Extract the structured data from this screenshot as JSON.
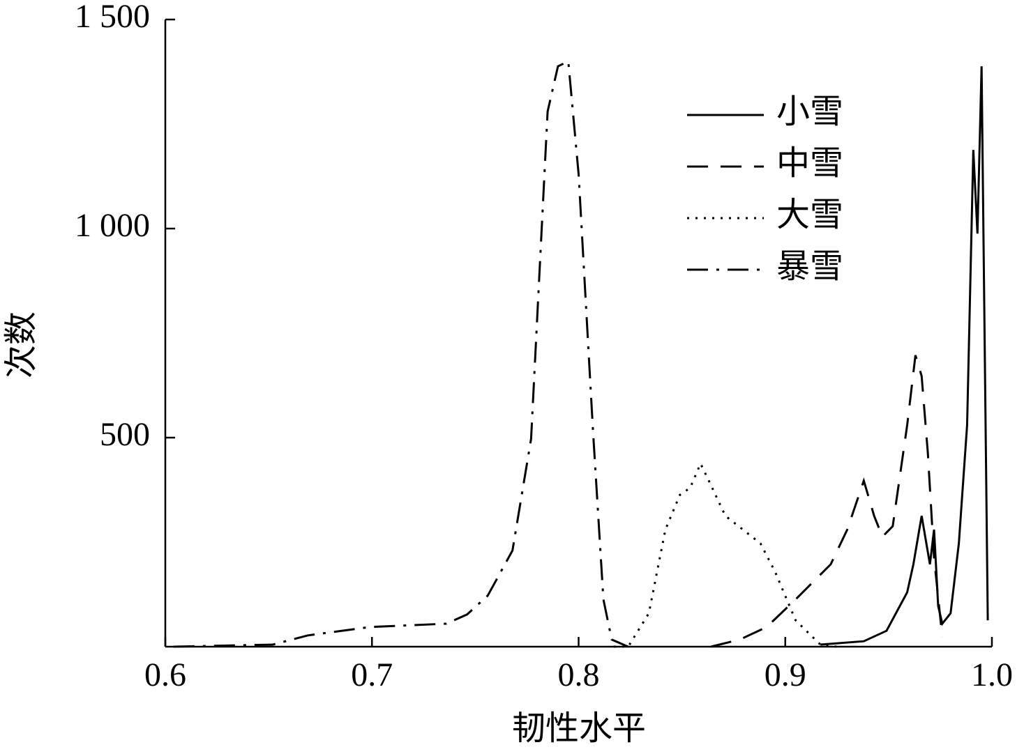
{
  "chart_data": {
    "type": "line",
    "xlabel": "韧性水平",
    "ylabel": "次数",
    "xlim": [
      0.6,
      1.0
    ],
    "ylim": [
      0,
      1500
    ],
    "xticks": [
      0.6,
      0.7,
      0.8,
      0.9,
      {
        "value": 1,
        "label": "1.0"
      }
    ],
    "yticks": [
      500,
      {
        "value": 1000,
        "label": "1 000"
      },
      {
        "value": 1500,
        "label": "1 500"
      }
    ],
    "legend": "upper right",
    "series": [
      {
        "name": "小雪",
        "color": "#000000",
        "dash": "solid",
        "x": [
          0.917,
          0.938,
          0.949,
          0.959,
          0.962,
          0.966,
          0.97,
          0.972,
          0.974,
          0.976,
          0.98,
          0.984,
          0.988,
          0.991,
          0.993,
          0.995,
          0.998
        ],
        "values": [
          5,
          13,
          38,
          130,
          197,
          313,
          197,
          280,
          97,
          55,
          80,
          247,
          530,
          1188,
          988,
          1388,
          63
        ]
      },
      {
        "name": "中雪",
        "color": "#000000",
        "dash": "dashed",
        "x": [
          0.864,
          0.878,
          0.891,
          0.905,
          0.922,
          0.93,
          0.938,
          0.943,
          0.947,
          0.952,
          0.959,
          0.963,
          0.966,
          0.969,
          0.972,
          0.976
        ],
        "values": [
          0,
          17,
          47,
          113,
          197,
          280,
          397,
          313,
          263,
          288,
          530,
          697,
          647,
          463,
          213,
          22
        ]
      },
      {
        "name": "大雪",
        "color": "#000000",
        "dash": "dotted",
        "x": [
          0.817,
          0.824,
          0.834,
          0.842,
          0.849,
          0.854,
          0.859,
          0.863,
          0.871,
          0.888,
          0.895,
          0.905,
          0.917,
          0.925
        ],
        "values": [
          0,
          0,
          80,
          280,
          363,
          380,
          438,
          397,
          313,
          247,
          180,
          63,
          5,
          0
        ]
      },
      {
        "name": "暴雪",
        "color": "#000000",
        "dash": "dashdot",
        "x": [
          0.604,
          0.652,
          0.669,
          0.699,
          0.736,
          0.746,
          0.756,
          0.768,
          0.777,
          0.785,
          0.79,
          0.795,
          0.8,
          0.807,
          0.812,
          0.816,
          0.824
        ],
        "values": [
          0,
          5,
          27,
          47,
          55,
          77,
          122,
          230,
          497,
          1280,
          1388,
          1400,
          1130,
          513,
          113,
          17,
          0
        ]
      }
    ]
  }
}
